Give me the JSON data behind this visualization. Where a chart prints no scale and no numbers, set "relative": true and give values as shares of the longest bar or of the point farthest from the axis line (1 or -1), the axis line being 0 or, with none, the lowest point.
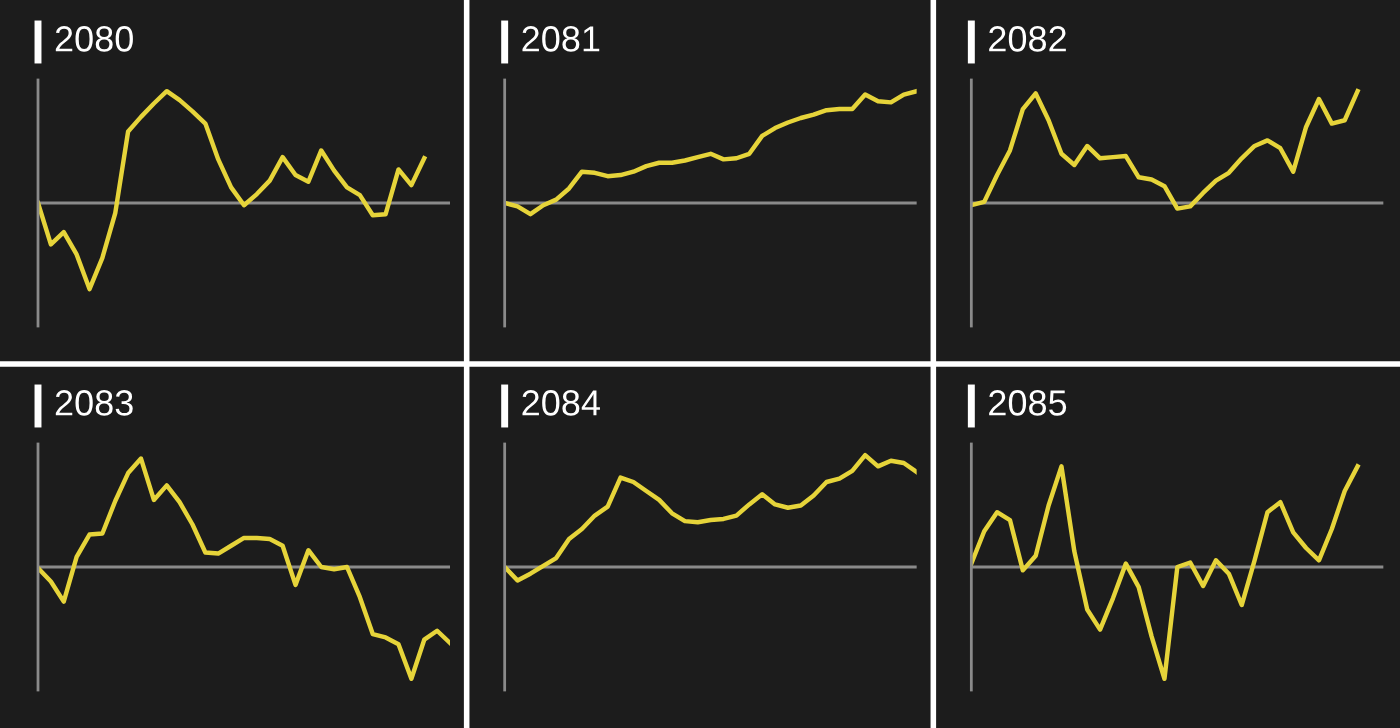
{
  "chart_data": [
    {
      "type": "line",
      "title": "2080",
      "relative": true,
      "categories": [
        null,
        null,
        null,
        null,
        null,
        null,
        null,
        null,
        null,
        null,
        null,
        null,
        null,
        null,
        null,
        null,
        null,
        null,
        null,
        null,
        null,
        null,
        null,
        null,
        null,
        null,
        null,
        null,
        null,
        null,
        null,
        null,
        null
      ],
      "series": [
        {
          "color": "#e6d43a",
          "values": [
            0,
            -0.37,
            -0.26,
            -0.46,
            -0.77,
            -0.49,
            -0.09,
            0.64,
            0.77,
            0.89,
            1,
            0.92,
            0.82,
            0.71,
            0.39,
            0.14,
            -0.02,
            0.08,
            0.2,
            0.41,
            0.25,
            0.19,
            0.47,
            0.29,
            0.14,
            0.07,
            -0.11,
            -0.1,
            0.3,
            0.16,
            0.4,
            null,
            null
          ]
        }
      ]
    },
    {
      "type": "line",
      "title": "2081",
      "relative": true,
      "categories": [
        null,
        null,
        null,
        null,
        null,
        null,
        null,
        null,
        null,
        null,
        null,
        null,
        null,
        null,
        null,
        null,
        null,
        null,
        null,
        null,
        null,
        null,
        null,
        null,
        null,
        null,
        null,
        null,
        null,
        null,
        null,
        null,
        null
      ],
      "series": [
        {
          "color": "#e6d43a",
          "values": [
            0,
            -0.03,
            -0.1,
            -0.02,
            0.03,
            0.13,
            0.28,
            0.27,
            0.24,
            0.25,
            0.28,
            0.33,
            0.36,
            0.36,
            0.38,
            0.41,
            0.44,
            0.39,
            0.4,
            0.44,
            0.6,
            0.67,
            0.72,
            0.76,
            0.79,
            0.83,
            0.84,
            0.84,
            0.97,
            0.91,
            0.9,
            0.97,
            1
          ]
        }
      ]
    },
    {
      "type": "line",
      "title": "2082",
      "relative": true,
      "categories": [
        null,
        null,
        null,
        null,
        null,
        null,
        null,
        null,
        null,
        null,
        null,
        null,
        null,
        null,
        null,
        null,
        null,
        null,
        null,
        null,
        null,
        null,
        null,
        null,
        null,
        null,
        null,
        null,
        null,
        null,
        null,
        null,
        null
      ],
      "series": [
        {
          "color": "#e6d43a",
          "values": [
            -0.02,
            0.01,
            0.25,
            0.47,
            0.84,
            0.98,
            0.74,
            0.44,
            0.34,
            0.51,
            0.4,
            0.41,
            0.42,
            0.23,
            0.21,
            0.15,
            -0.05,
            -0.03,
            0.09,
            0.2,
            0.27,
            0.4,
            0.51,
            0.56,
            0.49,
            0.28,
            0.68,
            0.93,
            0.71,
            0.74,
            1,
            null,
            null
          ]
        }
      ]
    },
    {
      "type": "line",
      "title": "2083",
      "relative": true,
      "categories": [
        null,
        null,
        null,
        null,
        null,
        null,
        null,
        null,
        null,
        null,
        null,
        null,
        null,
        null,
        null,
        null,
        null,
        null,
        null,
        null,
        null,
        null,
        null,
        null,
        null,
        null,
        null,
        null,
        null,
        null,
        null,
        null,
        null
      ],
      "series": [
        {
          "color": "#e6d43a",
          "values": [
            -0.01,
            -0.13,
            -0.31,
            0.09,
            0.29,
            0.3,
            0.59,
            0.84,
            0.97,
            0.6,
            0.73,
            0.58,
            0.38,
            0.13,
            0.12,
            0.19,
            0.26,
            0.26,
            0.25,
            0.19,
            -0.16,
            0.15,
            0,
            -0.02,
            0,
            -0.27,
            -0.6,
            -0.63,
            -0.69,
            -1,
            -0.65,
            -0.57,
            -0.68
          ]
        }
      ]
    },
    {
      "type": "line",
      "title": "2084",
      "relative": true,
      "categories": [
        null,
        null,
        null,
        null,
        null,
        null,
        null,
        null,
        null,
        null,
        null,
        null,
        null,
        null,
        null,
        null,
        null,
        null,
        null,
        null,
        null,
        null,
        null,
        null,
        null,
        null,
        null,
        null,
        null,
        null,
        null,
        null,
        null
      ],
      "series": [
        {
          "color": "#e6d43a",
          "values": [
            0,
            -0.12,
            -0.06,
            0.01,
            0.08,
            0.25,
            0.34,
            0.46,
            0.54,
            0.8,
            0.76,
            0.68,
            0.6,
            0.48,
            0.41,
            0.4,
            0.42,
            0.43,
            0.46,
            0.56,
            0.65,
            0.56,
            0.53,
            0.55,
            0.64,
            0.76,
            0.79,
            0.86,
            1,
            0.9,
            0.95,
            0.93,
            0.85
          ]
        }
      ]
    },
    {
      "type": "line",
      "title": "2085",
      "relative": true,
      "categories": [
        null,
        null,
        null,
        null,
        null,
        null,
        null,
        null,
        null,
        null,
        null,
        null,
        null,
        null,
        null,
        null,
        null,
        null,
        null,
        null,
        null,
        null,
        null,
        null,
        null,
        null,
        null,
        null,
        null,
        null,
        null,
        null,
        null
      ],
      "series": [
        {
          "color": "#e6d43a",
          "values": [
            0.03,
            0.32,
            0.49,
            0.42,
            -0.03,
            0.1,
            0.55,
            0.9,
            0.14,
            -0.38,
            -0.56,
            -0.28,
            0.03,
            -0.18,
            -0.62,
            -1,
            0,
            0.04,
            -0.17,
            0.06,
            -0.06,
            -0.34,
            0.06,
            0.49,
            0.58,
            0.31,
            0.17,
            0.06,
            0.34,
            0.68,
            0.9,
            null,
            null
          ]
        }
      ]
    }
  ]
}
